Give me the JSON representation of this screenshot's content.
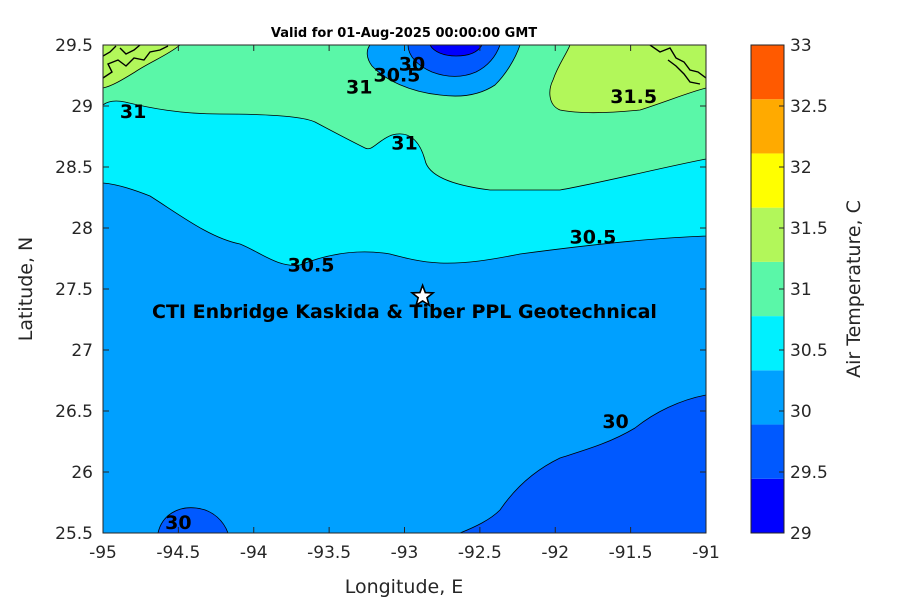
{
  "title": "Valid for 01-Aug-2025 00:00:00 GMT",
  "site_label": "CTI Enbridge  Kaskida & Tiber PPL Geotechnical",
  "x_axis": {
    "label": "Longitude, E",
    "range": [
      -95,
      -91
    ],
    "ticks": [
      "-95",
      "-94.5",
      "-94",
      "-93.5",
      "-93",
      "-92.5",
      "-92",
      "-91.5",
      "-91"
    ]
  },
  "y_axis": {
    "label": "Latitude, N",
    "range": [
      25.5,
      29.5
    ],
    "ticks": [
      "29.5",
      "29",
      "28.5",
      "28",
      "27.5",
      "27",
      "26.5",
      "26",
      "25.5"
    ]
  },
  "colorbar": {
    "label": "Air Temperature, C",
    "ticks": [
      "33",
      "32.5",
      "32",
      "31.5",
      "31",
      "30.5",
      "30",
      "29.5",
      "29"
    ],
    "colors": [
      "#0000ff",
      "#0059ff",
      "#00a0ff",
      "#00f0ff",
      "#5af7a8",
      "#b2f75a",
      "#ffff00",
      "#ffaa00",
      "#ff5a00"
    ]
  },
  "contour_labels": [
    {
      "text": "31",
      "lon": -94.8,
      "lat": 28.96
    },
    {
      "text": "31",
      "lon": -93.3,
      "lat": 29.16
    },
    {
      "text": "30.5",
      "lon": -93.05,
      "lat": 29.26
    },
    {
      "text": "30",
      "lon": -92.95,
      "lat": 29.35
    },
    {
      "text": "31.5",
      "lon": -91.48,
      "lat": 29.08
    },
    {
      "text": "31",
      "lon": -93.0,
      "lat": 28.7
    },
    {
      "text": "30.5",
      "lon": -93.62,
      "lat": 27.7
    },
    {
      "text": "30.5",
      "lon": -91.75,
      "lat": 27.93
    },
    {
      "text": "30",
      "lon": -91.6,
      "lat": 26.42
    },
    {
      "text": "30",
      "lon": -94.5,
      "lat": 25.59
    }
  ],
  "site": {
    "lon": -92.88,
    "lat": 27.44,
    "marker": "star-icon"
  }
}
